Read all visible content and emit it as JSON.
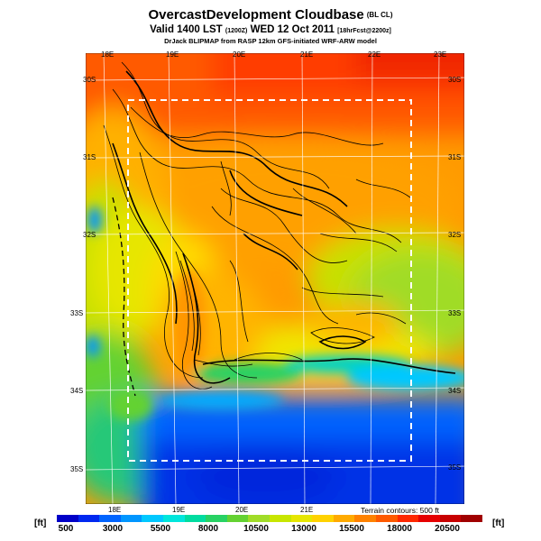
{
  "title": {
    "main": "OvercastDevelopment Cloudbase",
    "main_tag": "(BL CL)",
    "valid_prefix": "Valid 1400 LST",
    "valid_z": "(1200Z)",
    "valid_date": "WED 12 Oct 2011",
    "valid_fcst": "[18hrFcst@2200z]",
    "credit": "DrJack BLIPMAP from RASP 12km GFS-initiated WRF-ARW model"
  },
  "lon_labels": [
    "18E",
    "19E",
    "20E",
    "21E",
    "22E",
    "23E"
  ],
  "lon_labels_bottom": [
    "18E",
    "19E",
    "20E",
    "21E"
  ],
  "lat_labels_left": [
    "30S",
    "31S",
    "32S",
    "33S",
    "34S",
    "35S"
  ],
  "lat_labels_right": [
    "30S",
    "31S",
    "32S",
    "33S",
    "34S",
    "35S"
  ],
  "terrain_note": "Terrain contours: 500 ft",
  "colorbar": {
    "unit": "[ft]",
    "labels": [
      "500",
      "3000",
      "5500",
      "8000",
      "10500",
      "13000",
      "15500",
      "18000",
      "20500"
    ],
    "colors": [
      "#0000c8",
      "#0028f0",
      "#0064ff",
      "#0096ff",
      "#00c8ff",
      "#00e6dc",
      "#00dca0",
      "#28d264",
      "#64d232",
      "#a0dc28",
      "#c8e600",
      "#e6e600",
      "#ffd200",
      "#ffaa00",
      "#ff8200",
      "#ff5a00",
      "#ff2800",
      "#e60000",
      "#c80000",
      "#a00000"
    ]
  },
  "icons": [
    "dashed-box",
    "terrain-contours",
    "coastline"
  ]
}
